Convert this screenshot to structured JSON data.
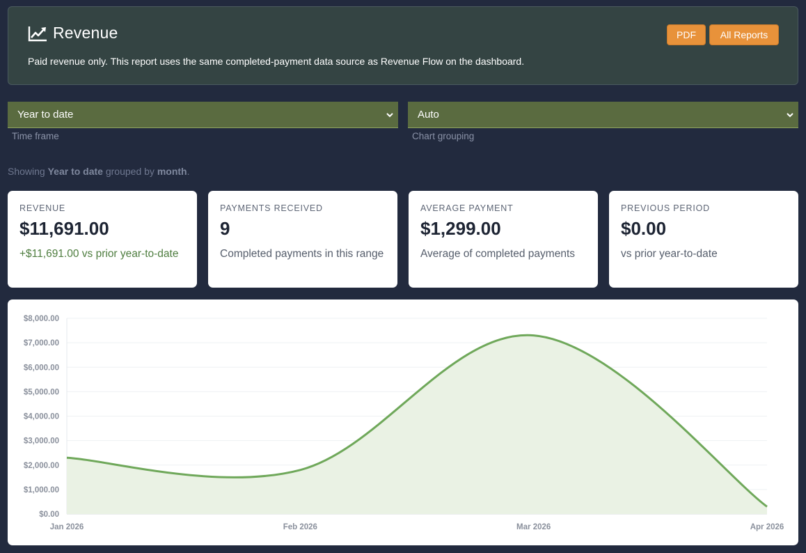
{
  "header": {
    "title": "Revenue",
    "icon": "line-chart-icon",
    "subtitle": "Paid revenue only. This report uses the same completed-payment data source as Revenue Flow on the dashboard.",
    "buttons": {
      "pdf": "PDF",
      "all_reports": "All Reports"
    }
  },
  "filters": {
    "time_frame": {
      "value": "Year to date",
      "caption": "Time frame"
    },
    "chart_grouping": {
      "value": "Auto",
      "caption": "Chart grouping"
    }
  },
  "showing": {
    "prefix": "Showing",
    "range": "Year to date",
    "middle": "grouped by",
    "group": "month",
    "suffix": "."
  },
  "stats": [
    {
      "label": "REVENUE",
      "value": "$11,691.00",
      "sub": "+$11,691.00 vs prior year-to-date"
    },
    {
      "label": "PAYMENTS RECEIVED",
      "value": "9",
      "sub": "Completed payments in this range"
    },
    {
      "label": "AVERAGE PAYMENT",
      "value": "$1,299.00",
      "sub": "Average of completed payments"
    },
    {
      "label": "PREVIOUS PERIOD",
      "value": "$0.00",
      "sub": "vs prior year-to-date"
    }
  ],
  "colors": {
    "accent": "#e8923a",
    "line": "#6fa85a",
    "fill": "#eaf2e4",
    "positive": "#4e7d3f"
  },
  "chart_data": {
    "type": "area",
    "categories": [
      "Jan 2026",
      "Feb 2026",
      "Mar 2026",
      "Apr 2026"
    ],
    "values": [
      2300,
      1800,
      7300,
      300
    ],
    "ylim": [
      0,
      8000
    ],
    "yticks": [
      "$0.00",
      "$1,000.00",
      "$2,000.00",
      "$3,000.00",
      "$4,000.00",
      "$5,000.00",
      "$6,000.00",
      "$7,000.00",
      "$8,000.00"
    ],
    "grid": true,
    "legend": "none"
  }
}
